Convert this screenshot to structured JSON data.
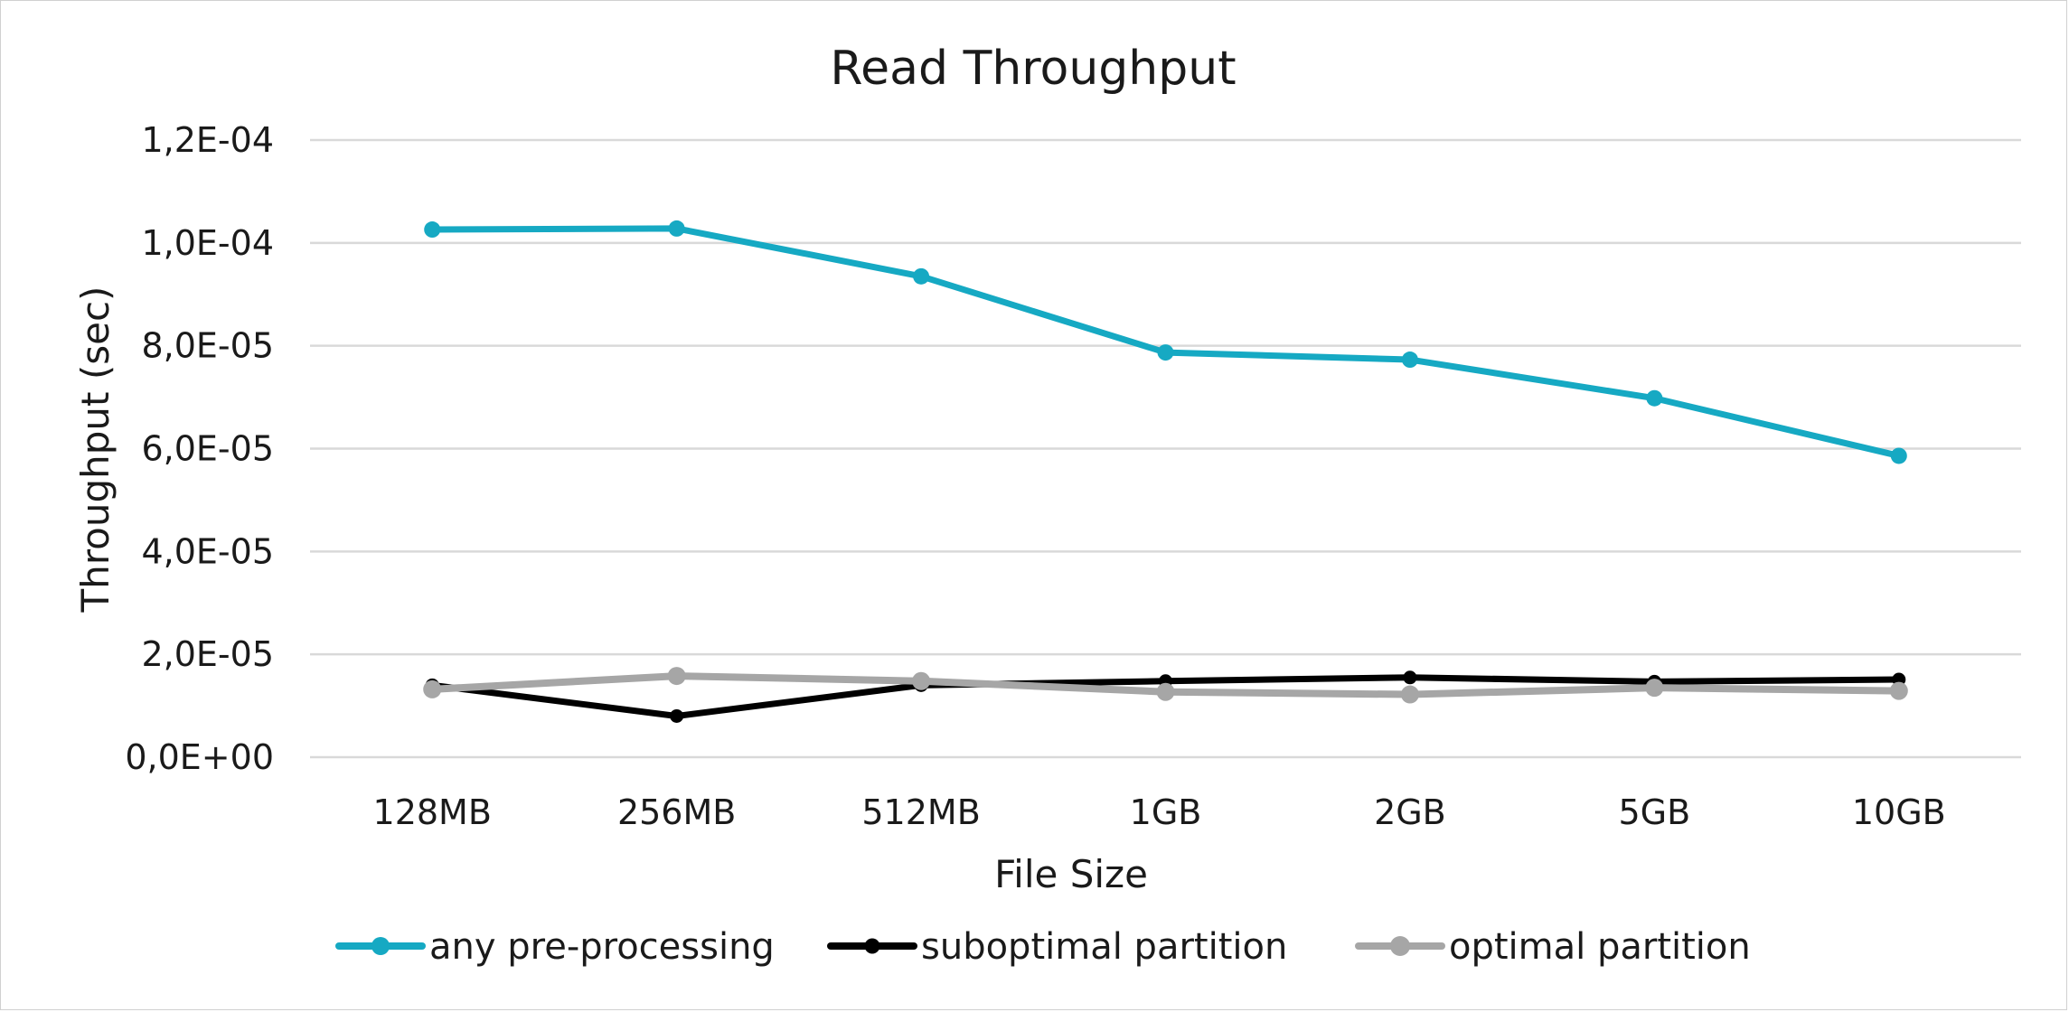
{
  "chart_data": {
    "type": "line",
    "title": "Read Throughput",
    "xlabel": "File Size",
    "ylabel": "Throughput (sec)",
    "categories": [
      "128MB",
      "256MB",
      "512MB",
      "1GB",
      "2GB",
      "5GB",
      "10GB"
    ],
    "ylim": [
      0,
      0.00012
    ],
    "yticks": [
      0,
      2e-05,
      4e-05,
      6e-05,
      8e-05,
      0.0001,
      0.00012
    ],
    "ytick_labels": [
      "0,0E+00",
      "2,0E-05",
      "4,0E-05",
      "6,0E-05",
      "8,0E-05",
      "1,0E-04",
      "1,2E-04"
    ],
    "grid": true,
    "legend_position": "bottom",
    "series": [
      {
        "name": "any pre-processing",
        "color": "#16a9c3",
        "values": [
          0.0001026,
          0.0001028,
          9.35e-05,
          7.87e-05,
          7.73e-05,
          6.98e-05,
          5.86e-05
        ]
      },
      {
        "name": "suboptimal partition",
        "color": "#000000",
        "values": [
          1.4e-05,
          8e-06,
          1.4e-05,
          1.48e-05,
          1.55e-05,
          1.47e-05,
          1.51e-05
        ]
      },
      {
        "name": "optimal partition",
        "color": "#a6a6a6",
        "values": [
          1.32e-05,
          1.58e-05,
          1.48e-05,
          1.27e-05,
          1.22e-05,
          1.35e-05,
          1.29e-05
        ]
      }
    ]
  }
}
